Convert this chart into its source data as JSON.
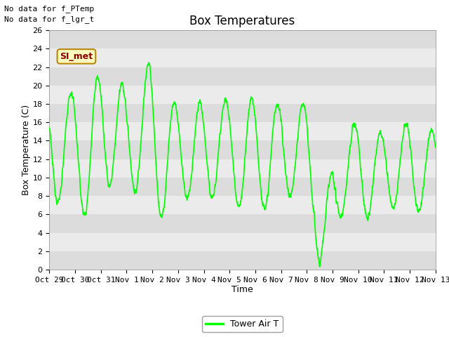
{
  "title": "Box Temperatures",
  "xlabel": "Time",
  "ylabel": "Box Temperature (C)",
  "ylim": [
    0,
    26
  ],
  "yticks": [
    0,
    2,
    4,
    6,
    8,
    10,
    12,
    14,
    16,
    18,
    20,
    22,
    24,
    26
  ],
  "line_color": "#00FF00",
  "line_width": 1.2,
  "bg_color": "#FFFFFF",
  "plot_bg_light": "#EBEBEB",
  "plot_bg_dark": "#DCDCDC",
  "grid_color": "#FFFFFF",
  "title_fontsize": 12,
  "label_fontsize": 9,
  "tick_fontsize": 8,
  "annotation_text1": "No data for f_PTemp",
  "annotation_text2": "No data for f_lgr_t",
  "legend_label": "Tower Air T",
  "box_label": "SI_met",
  "xtick_labels": [
    "Oct 29",
    "Oct 30",
    "Oct 31",
    "Nov 1",
    "Nov 2",
    "Nov 3",
    "Nov 4",
    "Nov 5",
    "Nov 6",
    "Nov 7",
    "Nov 8",
    "Nov 9",
    "Nov 10",
    "Nov 11",
    "Nov 12",
    "Nov 13"
  ],
  "num_days": 15
}
